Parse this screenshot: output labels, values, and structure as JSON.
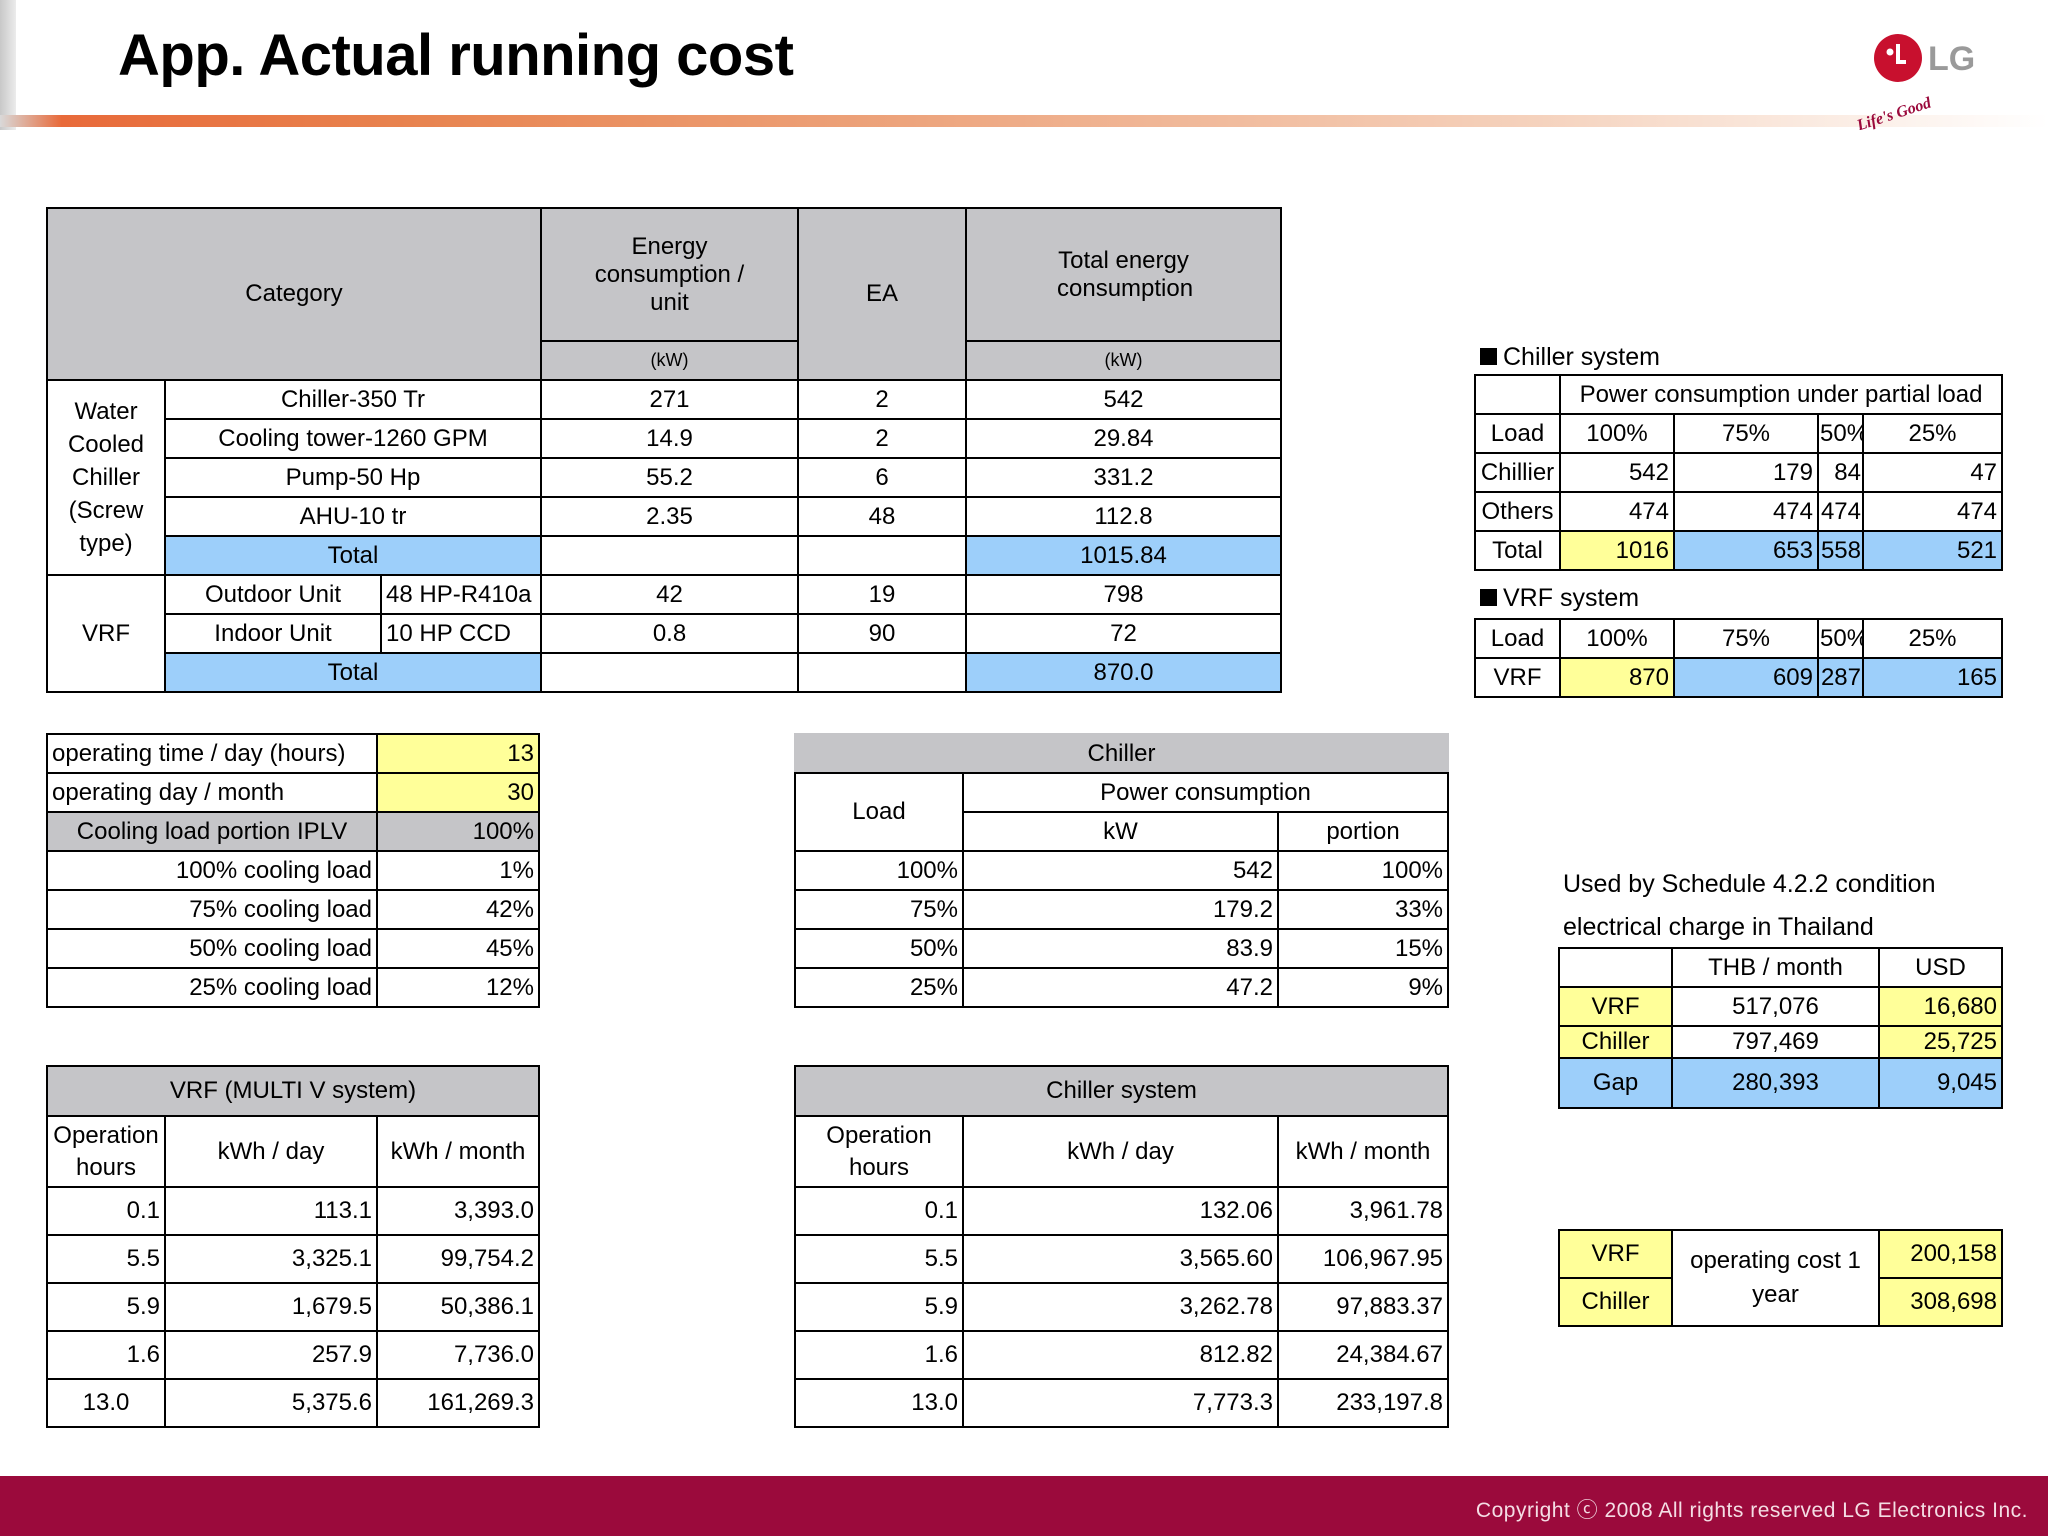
{
  "title": "App. Actual running cost",
  "logo": {
    "brand": "LG",
    "tagline": "Life's Good",
    "color": "#c8102e"
  },
  "footer": "Copyright ⓒ 2008 All rights reserved LG Electronics Inc.",
  "main_table": {
    "h_category": "Category",
    "h_energy": "Energy consumption / unit",
    "h_ea": "EA",
    "h_total": "Total energy consumption",
    "unit_kw": "(kW)",
    "group_wcc": "Water Cooled Chiller (Screw type)",
    "group_vrf": "VRF",
    "wcc_rows": [
      {
        "name": "Chiller-350 Tr",
        "energy": "271",
        "ea": "2",
        "total": "542"
      },
      {
        "name": "Cooling tower-1260 GPM",
        "energy": "14.9",
        "ea": "2",
        "total": "29.84"
      },
      {
        "name": "Pump-50 Hp",
        "energy": "55.2",
        "ea": "6",
        "total": "331.2"
      },
      {
        "name": "AHU-10 tr",
        "energy": "2.35",
        "ea": "48",
        "total": "112.8"
      }
    ],
    "wcc_total_label": "Total",
    "wcc_total": "1015.84",
    "vrf_rows": [
      {
        "name": "Outdoor Unit",
        "spec": "48 HP-R410a",
        "energy": "42",
        "ea": "19",
        "total": "798"
      },
      {
        "name": "Indoor Unit",
        "spec": "10 HP CCD",
        "energy": "0.8",
        "ea": "90",
        "total": "72"
      }
    ],
    "vrf_total_label": "Total",
    "vrf_total": "870.0"
  },
  "chiller_partial": {
    "label": "Chiller system",
    "header": "Power consumption under partial load",
    "row_label_load": "Load",
    "loads": [
      "100%",
      "75%",
      "50%",
      "25%"
    ],
    "rows": [
      {
        "label": "Chillier",
        "values": [
          "542",
          "179",
          "84",
          "47"
        ]
      },
      {
        "label": "Others",
        "values": [
          "474",
          "474",
          "474",
          "474"
        ]
      },
      {
        "label": "Total",
        "values": [
          "1016",
          "653",
          "558",
          "521"
        ]
      }
    ]
  },
  "vrf_partial": {
    "label": "VRF system",
    "row_label_load": "Load",
    "loads": [
      "100%",
      "75%",
      "50%",
      "25%"
    ],
    "row_label": "VRF",
    "values": [
      "870",
      "609",
      "287",
      "165"
    ]
  },
  "operating": {
    "time_label": "operating time / day (hours)",
    "time_value": "13",
    "day_label": "operating day / month",
    "day_value": "30",
    "iplv_label": "Cooling load portion IPLV",
    "iplv_value": "100%",
    "rows": [
      {
        "label": "100% cooling load",
        "value": "1%"
      },
      {
        "label": "75% cooling load",
        "value": "42%"
      },
      {
        "label": "50% cooling load",
        "value": "45%"
      },
      {
        "label": "25% cooling load",
        "value": "12%"
      }
    ]
  },
  "chiller_load": {
    "title": "Chiller",
    "h_load": "Load",
    "h_power": "Power consumption",
    "h_kw": "kW",
    "h_portion": "portion",
    "rows": [
      {
        "load": "100%",
        "kw": "542",
        "portion": "100%"
      },
      {
        "load": "75%",
        "kw": "179.2",
        "portion": "33%"
      },
      {
        "load": "50%",
        "kw": "83.9",
        "portion": "15%"
      },
      {
        "load": "25%",
        "kw": "47.2",
        "portion": "9%"
      }
    ]
  },
  "electrical": {
    "note1": "Used by Schedule 4.2.2 condition",
    "note2": "electrical charge in Thailand",
    "h_thb": "THB / month",
    "h_usd": "USD",
    "rows": [
      {
        "label": "VRF",
        "thb": "517,076",
        "usd": "16,680"
      },
      {
        "label": "Chiller",
        "thb": "797,469",
        "usd": "25,725"
      },
      {
        "label": "Gap",
        "thb": "280,393",
        "usd": "9,045"
      }
    ]
  },
  "vrf_energy": {
    "title": "VRF (MULTI V system)",
    "h_hours": "Operation hours",
    "h_day": "kWh / day",
    "h_month": "kWh / month",
    "rows": [
      {
        "hours": "0.1",
        "day": "113.1",
        "month": "3,393.0"
      },
      {
        "hours": "5.5",
        "day": "3,325.1",
        "month": "99,754.2"
      },
      {
        "hours": "5.9",
        "day": "1,679.5",
        "month": "50,386.1"
      },
      {
        "hours": "1.6",
        "day": "257.9",
        "month": "7,736.0"
      }
    ],
    "total": {
      "hours": "13.0",
      "day": "5,375.6",
      "month": "161,269.3"
    }
  },
  "chiller_energy": {
    "title": "Chiller system",
    "h_hours": "Operation hours",
    "h_day": "kWh / day",
    "h_month": "kWh / month",
    "rows": [
      {
        "hours": "0.1",
        "day": "132.06",
        "month": "3,961.78"
      },
      {
        "hours": "5.5",
        "day": "3,565.60",
        "month": "106,967.95"
      },
      {
        "hours": "5.9",
        "day": "3,262.78",
        "month": "97,883.37"
      },
      {
        "hours": "1.6",
        "day": "812.82",
        "month": "24,384.67"
      }
    ],
    "total": {
      "hours": "13.0",
      "day": "7,773.3",
      "month": "233,197.8"
    }
  },
  "annual": {
    "label": "operating cost 1 year",
    "rows": [
      {
        "label": "VRF",
        "value": "200,158"
      },
      {
        "label": "Chiller",
        "value": "308,698"
      }
    ]
  },
  "colors": {
    "header_gray": "#c5c5c8",
    "highlight_blue": "#9dcffa",
    "highlight_yellow": "#ffff99",
    "footer": "#9b0a3c"
  }
}
